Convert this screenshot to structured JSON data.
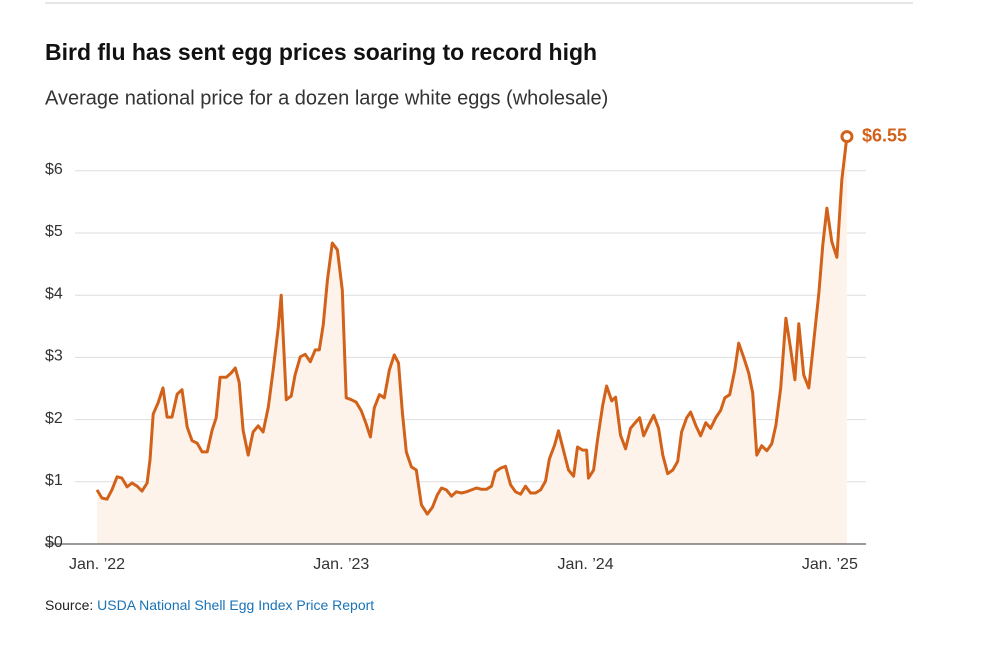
{
  "chart_data": {
    "type": "line",
    "title": "Bird flu has sent egg prices soaring to record high",
    "subtitle": "Average national price for a dozen large white eggs (wholesale)",
    "source_label": "Source:",
    "source_link": "USDA National Shell Egg Index Price Report",
    "end_label": "$6.55",
    "xlim": [
      2021.787,
      2025.148
    ],
    "xticks": [
      {
        "value": 2022,
        "label": "Jan. ’22"
      },
      {
        "value": 2023,
        "label": "Jan. ’23"
      },
      {
        "value": 2024,
        "label": "Jan. ’24"
      },
      {
        "value": 2025,
        "label": "Jan. ’25"
      }
    ],
    "ylim": [
      0,
      6.7
    ],
    "yticks": [
      {
        "value": 0,
        "label": "$0"
      },
      {
        "value": 1,
        "label": "$1"
      },
      {
        "value": 2,
        "label": "$2"
      },
      {
        "value": 3,
        "label": "$3"
      },
      {
        "value": 4,
        "label": "$4"
      },
      {
        "value": 5,
        "label": "$5"
      },
      {
        "value": 6,
        "label": "$6"
      }
    ],
    "grid": true,
    "area": true,
    "color": "#d2621a",
    "area_color": "#fdf3ea",
    "x": [
      2022.0,
      2022.02,
      2022.041,
      2022.061,
      2022.082,
      2022.102,
      2022.123,
      2022.143,
      2022.164,
      2022.184,
      2022.205,
      2022.217,
      2022.23,
      2022.25,
      2022.27,
      2022.287,
      2022.307,
      2022.328,
      2022.348,
      2022.369,
      2022.389,
      2022.41,
      2022.43,
      2022.451,
      2022.471,
      2022.488,
      2022.504,
      2022.529,
      2022.549,
      2022.566,
      2022.582,
      2022.598,
      2022.619,
      2022.639,
      2022.66,
      2022.68,
      2022.701,
      2022.721,
      2022.742,
      2022.754,
      2022.775,
      2022.795,
      2022.811,
      2022.832,
      2022.852,
      2022.873,
      2022.893,
      2022.91,
      2022.926,
      2022.943,
      2022.963,
      2022.984,
      2023.004,
      2023.02,
      2023.041,
      2023.061,
      2023.082,
      2023.102,
      2023.119,
      2023.135,
      2023.156,
      2023.176,
      2023.197,
      2023.217,
      2023.234,
      2023.25,
      2023.266,
      2023.287,
      2023.307,
      2023.328,
      2023.352,
      2023.373,
      2023.393,
      2023.41,
      2023.43,
      2023.451,
      2023.471,
      2023.492,
      2023.512,
      2023.533,
      2023.553,
      2023.574,
      2023.594,
      2023.615,
      2023.631,
      2023.652,
      2023.672,
      2023.693,
      2023.713,
      2023.734,
      2023.754,
      2023.775,
      2023.795,
      2023.816,
      2023.836,
      2023.852,
      2023.873,
      2023.889,
      2023.91,
      2023.93,
      2023.951,
      2023.967,
      2023.988,
      2024.004,
      2024.012,
      2024.033,
      2024.049,
      2024.07,
      2024.086,
      2024.107,
      2024.123,
      2024.143,
      2024.164,
      2024.184,
      2024.205,
      2024.221,
      2024.238,
      2024.258,
      2024.279,
      2024.299,
      2024.316,
      2024.336,
      2024.357,
      2024.377,
      2024.393,
      2024.414,
      2024.43,
      2024.451,
      2024.471,
      2024.492,
      2024.512,
      2024.533,
      2024.553,
      2024.57,
      2024.59,
      2024.611,
      2024.627,
      2024.648,
      2024.668,
      2024.684,
      2024.701,
      2024.721,
      2024.742,
      2024.762,
      2024.779,
      2024.799,
      2024.82,
      2024.84,
      2024.857,
      2024.873,
      2024.893,
      2024.914,
      2024.934,
      2024.955,
      2024.971,
      2024.988,
      2025.008,
      2025.029,
      2025.049,
      2025.07
    ],
    "values": [
      0.87,
      0.74,
      0.72,
      0.87,
      1.08,
      1.06,
      0.92,
      0.98,
      0.93,
      0.85,
      0.98,
      1.35,
      2.09,
      2.27,
      2.51,
      2.04,
      2.04,
      2.41,
      2.48,
      1.88,
      1.66,
      1.62,
      1.48,
      1.48,
      1.83,
      2.03,
      2.68,
      2.68,
      2.75,
      2.83,
      2.6,
      1.83,
      1.43,
      1.8,
      1.9,
      1.8,
      2.2,
      2.8,
      3.49,
      4.0,
      2.32,
      2.38,
      2.72,
      3.01,
      3.05,
      2.93,
      3.12,
      3.12,
      3.52,
      4.24,
      4.84,
      4.73,
      4.08,
      2.35,
      2.32,
      2.28,
      2.14,
      1.93,
      1.72,
      2.19,
      2.4,
      2.35,
      2.8,
      3.04,
      2.91,
      2.11,
      1.48,
      1.24,
      1.19,
      0.63,
      0.48,
      0.59,
      0.79,
      0.9,
      0.87,
      0.77,
      0.84,
      0.82,
      0.84,
      0.87,
      0.9,
      0.88,
      0.88,
      0.93,
      1.16,
      1.22,
      1.25,
      0.95,
      0.84,
      0.8,
      0.93,
      0.82,
      0.82,
      0.87,
      1.01,
      1.37,
      1.59,
      1.82,
      1.5,
      1.19,
      1.09,
      1.56,
      1.51,
      1.51,
      1.06,
      1.19,
      1.67,
      2.23,
      2.54,
      2.3,
      2.36,
      1.75,
      1.53,
      1.86,
      1.96,
      2.03,
      1.74,
      1.91,
      2.07,
      1.86,
      1.43,
      1.13,
      1.19,
      1.33,
      1.8,
      2.03,
      2.12,
      1.91,
      1.74,
      1.95,
      1.86,
      2.03,
      2.15,
      2.35,
      2.4,
      2.8,
      3.23,
      2.99,
      2.75,
      2.43,
      1.43,
      1.58,
      1.5,
      1.61,
      1.91,
      2.51,
      3.63,
      3.12,
      2.64,
      3.54,
      2.72,
      2.51,
      3.25,
      4.04,
      4.81,
      5.4,
      4.86,
      4.61,
      5.85,
      6.55
    ]
  }
}
